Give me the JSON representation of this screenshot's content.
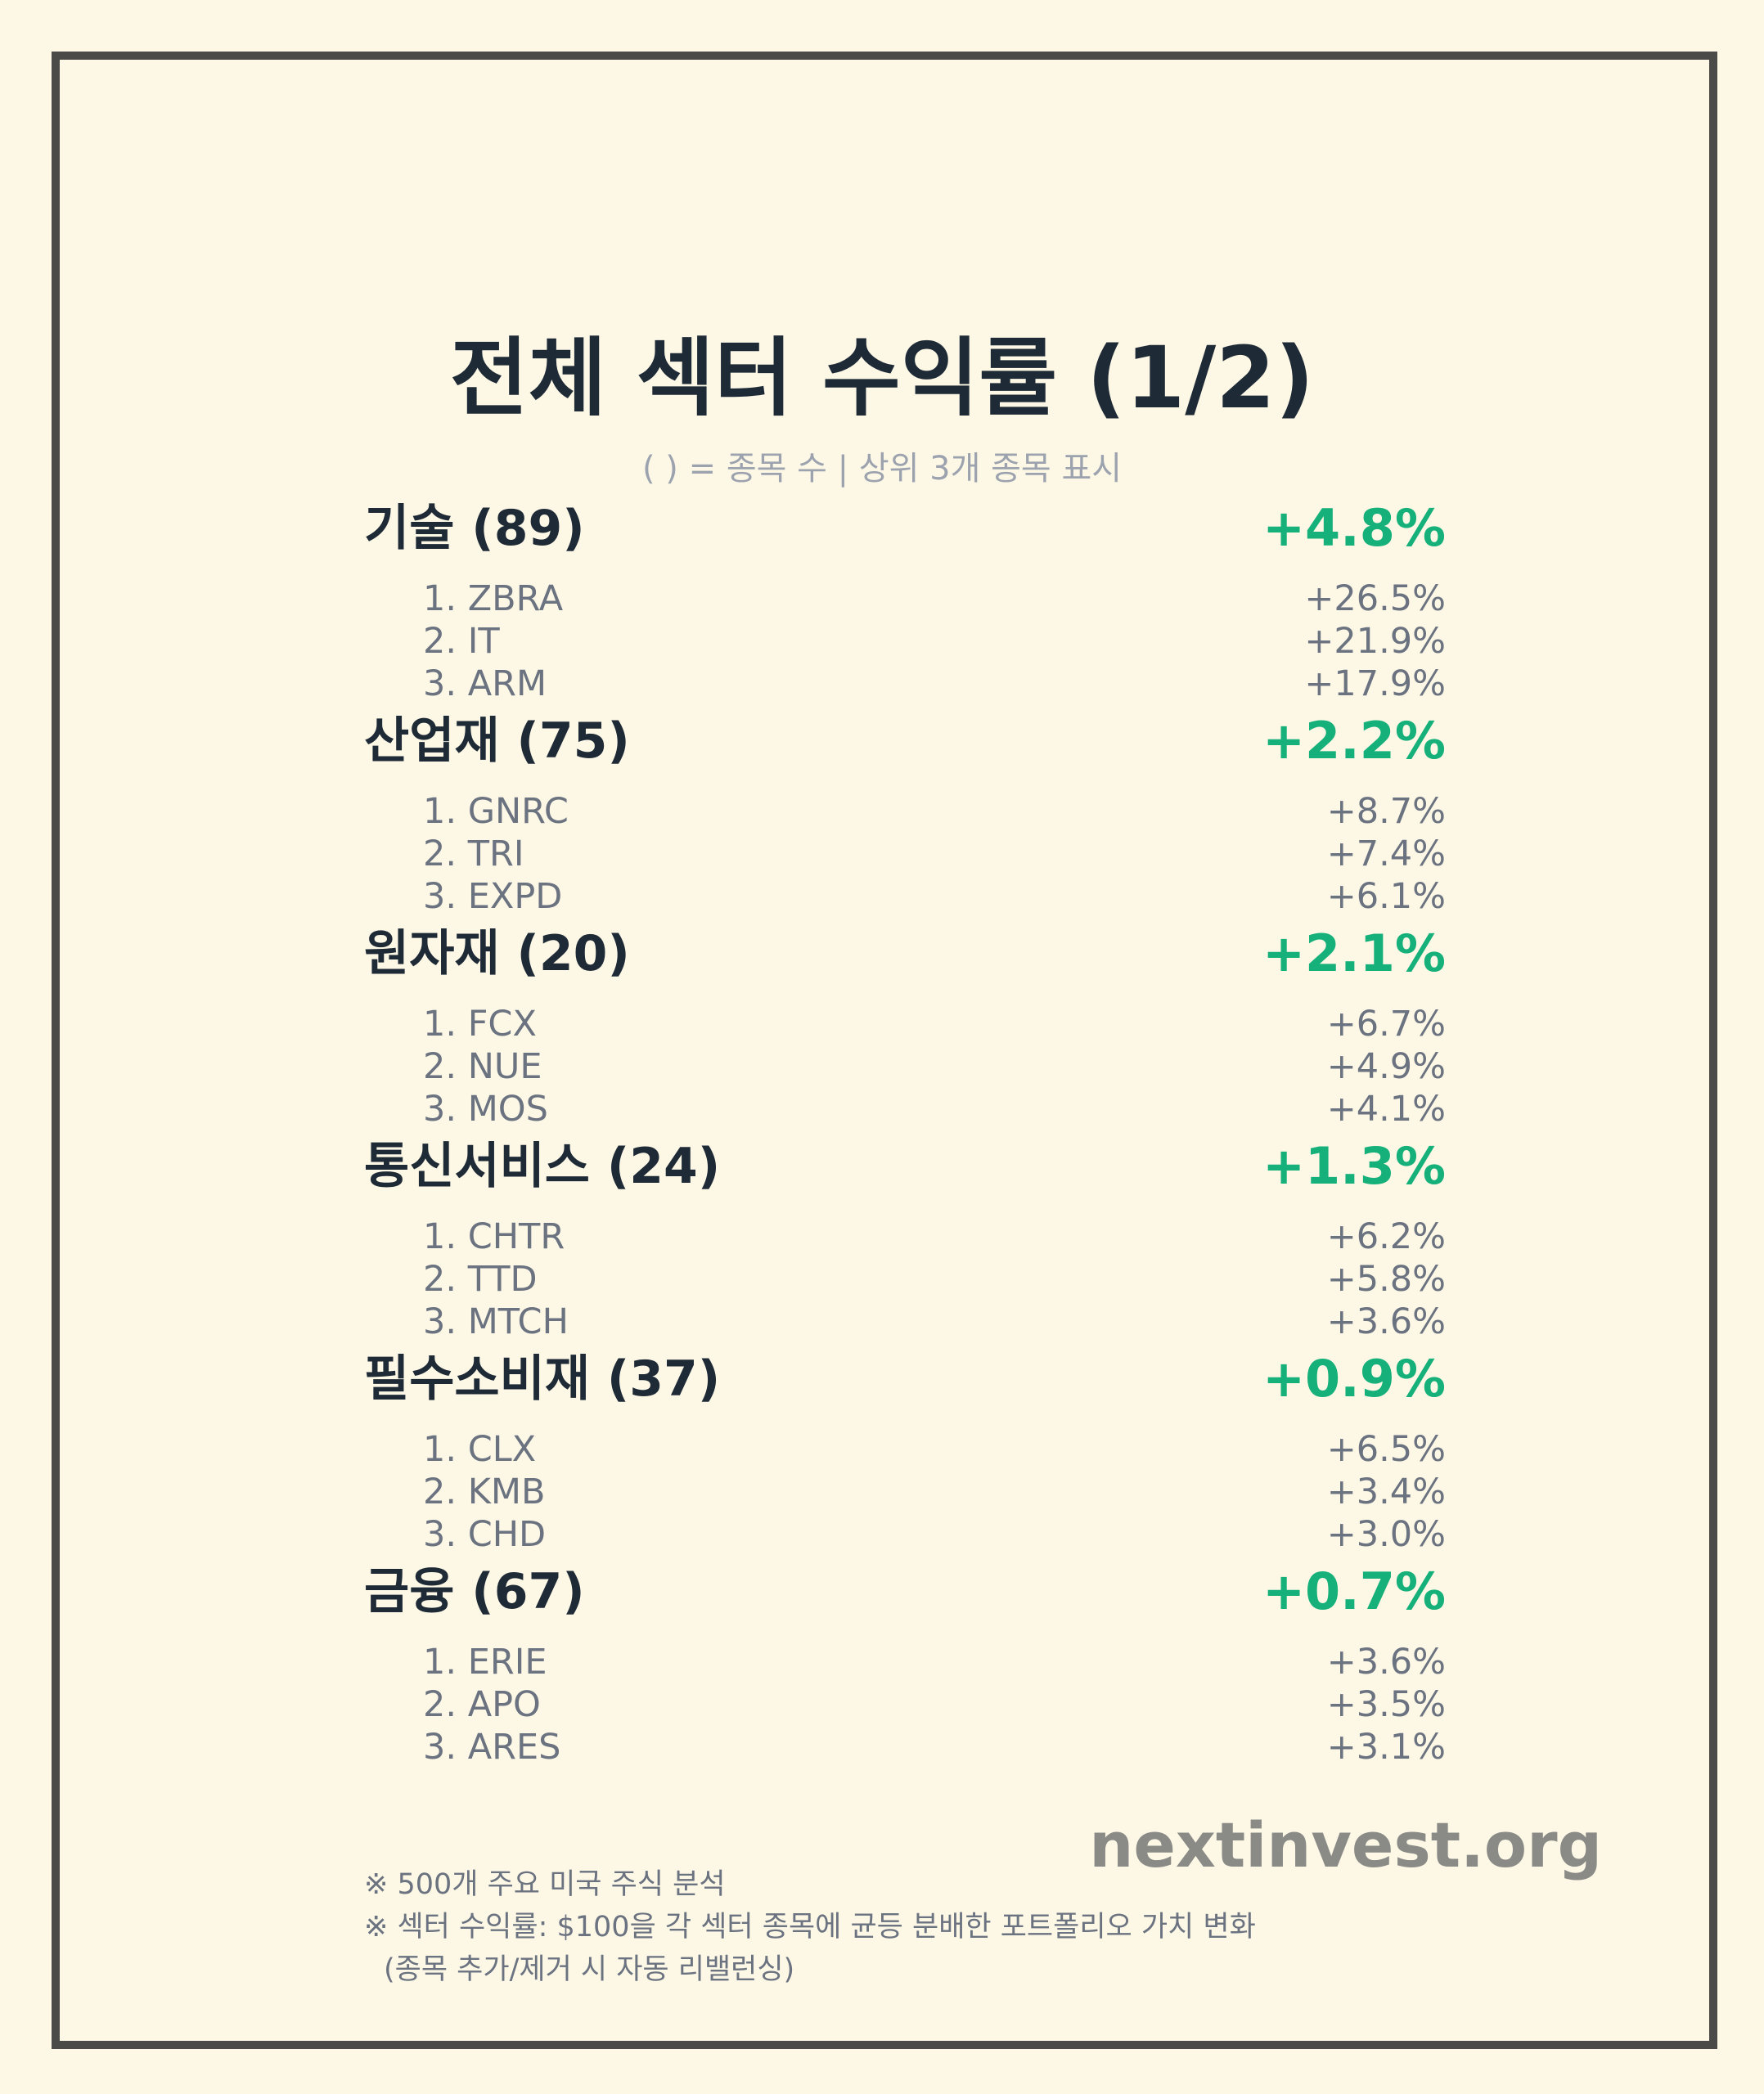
{
  "title": "전체 섹터 수익률 (1/2)",
  "subtitle": "( ) = 종목 수 | 상위 3개 종목 표시",
  "sectors": [
    {
      "name": "기술 (89)",
      "return": "+4.8%",
      "stocks": [
        {
          "ticker": "1. ZBRA",
          "return": "+26.5%"
        },
        {
          "ticker": "2. IT",
          "return": "+21.9%"
        },
        {
          "ticker": "3. ARM",
          "return": "+17.9%"
        }
      ]
    },
    {
      "name": "산업재 (75)",
      "return": "+2.2%",
      "stocks": [
        {
          "ticker": "1. GNRC",
          "return": "+8.7%"
        },
        {
          "ticker": "2. TRI",
          "return": "+7.4%"
        },
        {
          "ticker": "3. EXPD",
          "return": "+6.1%"
        }
      ]
    },
    {
      "name": "원자재 (20)",
      "return": "+2.1%",
      "stocks": [
        {
          "ticker": "1. FCX",
          "return": "+6.7%"
        },
        {
          "ticker": "2. NUE",
          "return": "+4.9%"
        },
        {
          "ticker": "3. MOS",
          "return": "+4.1%"
        }
      ]
    },
    {
      "name": "통신서비스 (24)",
      "return": "+1.3%",
      "stocks": [
        {
          "ticker": "1. CHTR",
          "return": "+6.2%"
        },
        {
          "ticker": "2. TTD",
          "return": "+5.8%"
        },
        {
          "ticker": "3. MTCH",
          "return": "+3.6%"
        }
      ]
    },
    {
      "name": "필수소비재 (37)",
      "return": "+0.9%",
      "stocks": [
        {
          "ticker": "1. CLX",
          "return": "+6.5%"
        },
        {
          "ticker": "2. KMB",
          "return": "+3.4%"
        },
        {
          "ticker": "3. CHD",
          "return": "+3.0%"
        }
      ]
    },
    {
      "name": "금융 (67)",
      "return": "+0.7%",
      "stocks": [
        {
          "ticker": "1. ERIE",
          "return": "+3.6%"
        },
        {
          "ticker": "2. APO",
          "return": "+3.5%"
        },
        {
          "ticker": "3. ARES",
          "return": "+3.1%"
        }
      ]
    }
  ],
  "brand": "nextinvest.org",
  "notes": [
    "※ 500개 주요 미국 주식 분석",
    "※ 섹터 수익률: $100을 각 섹터 종목에 균등 분배한 포트폴리오 가치 변화",
    "(종목 추가/제거 시 자동 리밸런싱)"
  ],
  "colors": {
    "background": "#fdf8e6",
    "frame": "#4a4a48",
    "positive": "#16b07a",
    "heading": "#1f2a37",
    "muted": "#6b7280"
  }
}
